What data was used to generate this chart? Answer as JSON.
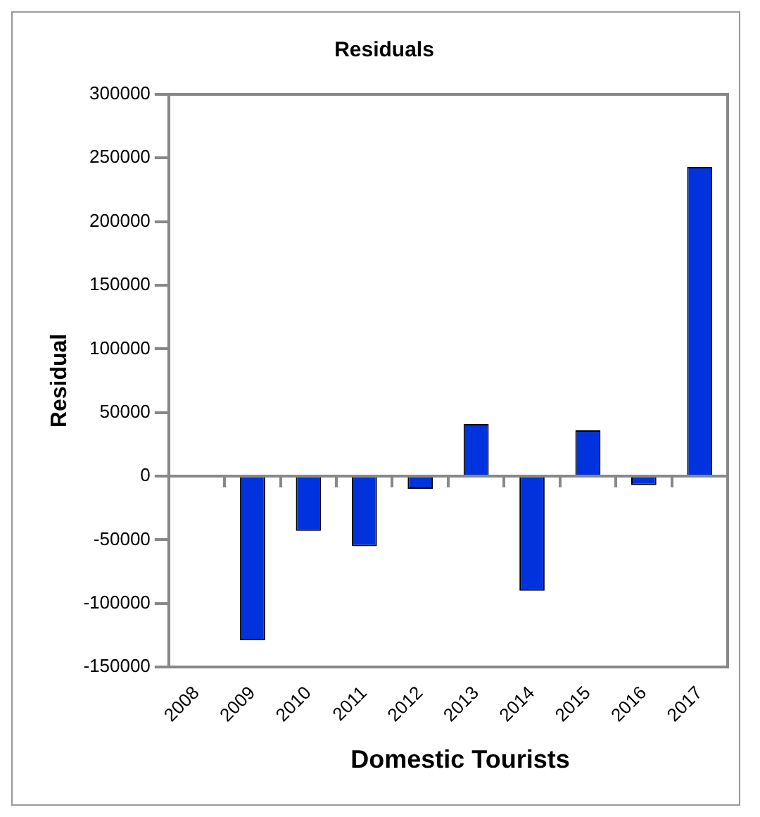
{
  "chart_data": {
    "type": "bar",
    "title": "Residuals",
    "xlabel": "Domestic Tourists",
    "ylabel": "Residual",
    "categories": [
      "2008",
      "2009",
      "2010",
      "2011",
      "2012",
      "2013",
      "2014",
      "2015",
      "2016",
      "2017"
    ],
    "values": [
      null,
      -129000,
      -43000,
      -55000,
      -10000,
      41000,
      -90000,
      36000,
      -7000,
      243000
    ],
    "color": "#0033dd",
    "ylim": [
      -150000,
      300000
    ],
    "yticks": [
      -150000,
      -100000,
      -50000,
      0,
      50000,
      100000,
      150000,
      200000,
      250000,
      300000
    ],
    "ref_lines": [
      {
        "axis": "y",
        "value": 0,
        "color": "#888888"
      }
    ],
    "grid": false,
    "legend": false
  }
}
